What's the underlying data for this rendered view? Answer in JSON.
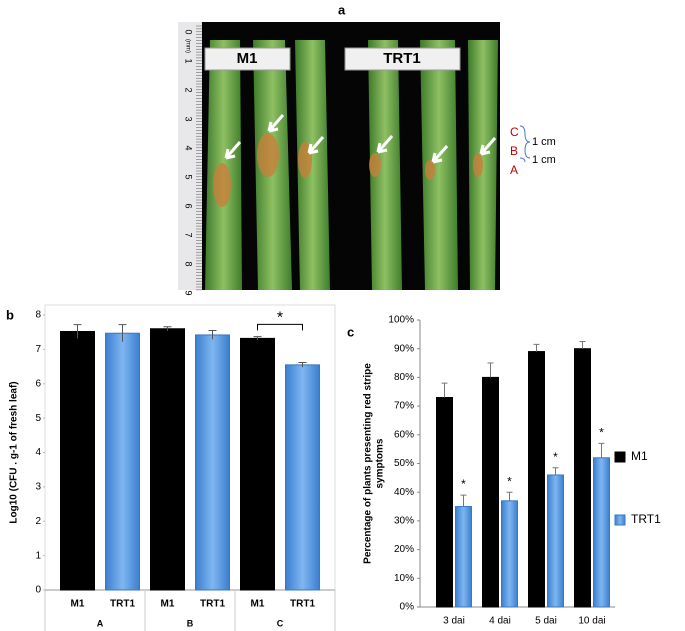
{
  "panel_a": {
    "label": "a",
    "leaf_labels": [
      "M1",
      "TRT1"
    ],
    "zone_labels": [
      "C",
      "B",
      "A"
    ],
    "zone_sizes": [
      "1 cm",
      "1 cm"
    ],
    "ruler_unit": "(mm)",
    "ruler_labels": [
      "0",
      "1",
      "2",
      "3",
      "4",
      "5",
      "6",
      "7",
      "8",
      "9"
    ]
  },
  "chart_data": [
    {
      "type": "bar",
      "panel_label": "b",
      "ylabel": "Log10 (CFU . g-1 of fresh leaf)",
      "categories": [
        "M1",
        "TRT1",
        "M1",
        "TRT1",
        "M1",
        "TRT1"
      ],
      "groups": [
        "A",
        "B",
        "C"
      ],
      "values": [
        7.52,
        7.47,
        7.6,
        7.42,
        7.32,
        6.55
      ],
      "errors": [
        0.2,
        0.25,
        0.06,
        0.13,
        0.05,
        0.07
      ],
      "colors": [
        "#000000",
        "#4a90e2",
        "#000000",
        "#4a90e2",
        "#000000",
        "#4a90e2"
      ],
      "annotation": "*",
      "ylim": [
        0,
        8
      ],
      "yticks": [
        0,
        1,
        2,
        3,
        4,
        5,
        6,
        7,
        8
      ]
    },
    {
      "type": "grouped_bar",
      "panel_label": "c",
      "ylabel": [
        "Percentage of plants presenting red stripe",
        "symptoms"
      ],
      "categories": [
        "3 dai",
        "4 dai",
        "5 dai",
        "10 dai"
      ],
      "series": [
        {
          "name": "M1",
          "color": "#000000",
          "values": [
            73,
            80,
            89,
            90
          ],
          "errors": [
            5,
            5,
            2.5,
            2.5
          ]
        },
        {
          "name": "TRT1",
          "color": "#4a90e2",
          "values": [
            35,
            37,
            46,
            52
          ],
          "errors": [
            4,
            3,
            2.5,
            5
          ],
          "significance": [
            "*",
            "*",
            "*",
            "*"
          ]
        }
      ],
      "ylim": [
        0,
        100
      ],
      "yticks": [
        {
          "value": 0,
          "label": "0%"
        },
        {
          "value": 10,
          "label": "10%"
        },
        {
          "value": 20,
          "label": "20%"
        },
        {
          "value": 30,
          "label": "30%"
        },
        {
          "value": 40,
          "label": "40%"
        },
        {
          "value": 50,
          "label": "50%"
        },
        {
          "value": 60,
          "label": "60%"
        },
        {
          "value": 70,
          "label": "70%"
        },
        {
          "value": 80,
          "label": "80%"
        },
        {
          "value": 90,
          "label": "90%"
        },
        {
          "value": 100,
          "label": "100%"
        }
      ],
      "legend": "right"
    }
  ]
}
